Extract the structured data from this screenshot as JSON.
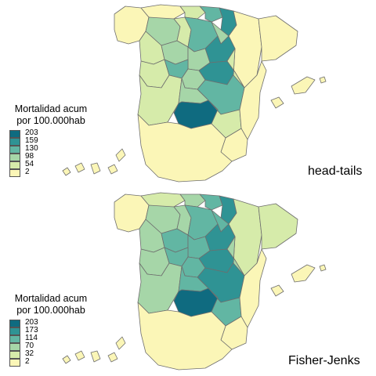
{
  "maps": [
    {
      "method_label": "head-tails",
      "legend": {
        "title_line1": "Mortalidad acum",
        "title_line2": "por 100.000hab",
        "classes": [
          {
            "label": "203",
            "color": "#0f6b80"
          },
          {
            "label": "159",
            "color": "#2f9394"
          },
          {
            "label": "130",
            "color": "#62b6a3"
          },
          {
            "label": "98",
            "color": "#a6d6a8"
          },
          {
            "label": "54",
            "color": "#d6ebaa"
          },
          {
            "label": "2",
            "color": "#fbf6b7"
          }
        ]
      },
      "regions": {
        "galicia": 5,
        "asturias": 5,
        "cantabria": 4,
        "pais_vasco": 2,
        "navarra": 1,
        "aragon": 5,
        "cataluna": 5,
        "leon": 3,
        "palencia": 4,
        "burgos": 2,
        "la_rioja": 3,
        "soria": 1,
        "zamora": 4,
        "valladolid": 3,
        "segovia": 3,
        "salamanca": 4,
        "avila": 2,
        "madrid": 3,
        "guadalajara": 1,
        "cuenca": 2,
        "teruel": 4,
        "extremadura": 4,
        "toledo": 3,
        "ciudad_real": 0,
        "albacete": 4,
        "valencia": 5,
        "murcia": 5,
        "andalucia": 5,
        "baleares": 5,
        "canarias": 5
      }
    },
    {
      "method_label": "Fisher-Jenks",
      "legend": {
        "title_line1": "Mortalidad acum",
        "title_line2": "por 100.000hab",
        "classes": [
          {
            "label": "203",
            "color": "#0f6b80"
          },
          {
            "label": "173",
            "color": "#2f9394"
          },
          {
            "label": "114",
            "color": "#62b6a3"
          },
          {
            "label": "70",
            "color": "#a6d6a8"
          },
          {
            "label": "32",
            "color": "#d6ebaa"
          },
          {
            "label": "2",
            "color": "#fbf6b7"
          }
        ]
      },
      "regions": {
        "galicia": 5,
        "asturias": 4,
        "cantabria": 3,
        "pais_vasco": 2,
        "navarra": 1,
        "aragon": 4,
        "cataluna": 4,
        "leon": 3,
        "palencia": 3,
        "burgos": 2,
        "la_rioja": 2,
        "soria": 1,
        "zamora": 3,
        "valladolid": 2,
        "segovia": 2,
        "salamanca": 3,
        "avila": 2,
        "madrid": 2,
        "guadalajara": 1,
        "cuenca": 1,
        "teruel": 3,
        "extremadura": 3,
        "toledo": 2,
        "ciudad_real": 0,
        "albacete": 2,
        "valencia": 5,
        "murcia": 5,
        "andalucia": 5,
        "baleares": 5,
        "canarias": 5
      }
    }
  ]
}
